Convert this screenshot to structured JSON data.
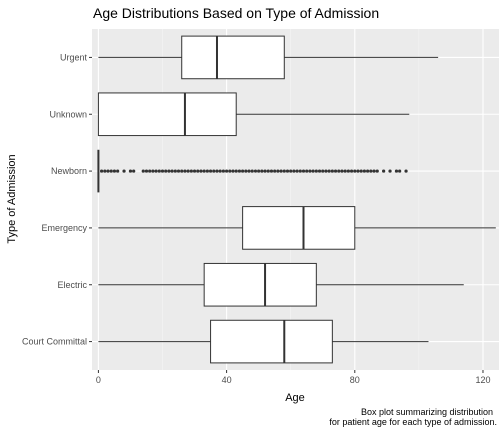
{
  "chart_data": {
    "type": "boxplot",
    "orientation": "horizontal",
    "title": "Age Distributions Based on Type of Admission",
    "xlabel": "Age",
    "ylabel": "Type of Admission",
    "caption_lines": [
      "Box plot summarizing distribution",
      "for patient age for each type of admission."
    ],
    "xlim": [
      -2,
      125
    ],
    "x_ticks": [
      0,
      40,
      80,
      120
    ],
    "x_tick_labels": [
      "0",
      "40",
      "80",
      "120"
    ],
    "grid": true,
    "categories": [
      "Urgent",
      "Unknown",
      "Newborn",
      "Emergency",
      "Electric",
      "Court Committal"
    ],
    "boxes": [
      {
        "category": "Urgent",
        "whisker_low": 0,
        "q1": 26,
        "median": 37,
        "q3": 58,
        "whisker_high": 106
      },
      {
        "category": "Unknown",
        "whisker_low": 0,
        "q1": 0,
        "median": 27,
        "q3": 43,
        "whisker_high": 97
      },
      {
        "category": "Newborn",
        "whisker_low": 0,
        "q1": 0,
        "median": 0,
        "q3": 0,
        "whisker_high": 0,
        "outliers": [
          1,
          2,
          3,
          4,
          5,
          6,
          8,
          10,
          11,
          14,
          15,
          16,
          17,
          18,
          19,
          20,
          21,
          22,
          23,
          24,
          25,
          26,
          27,
          28,
          29,
          30,
          31,
          32,
          33,
          34,
          35,
          36,
          37,
          38,
          39,
          40,
          41,
          42,
          43,
          44,
          45,
          46,
          47,
          48,
          49,
          50,
          51,
          52,
          53,
          54,
          55,
          56,
          57,
          58,
          59,
          60,
          61,
          62,
          63,
          64,
          65,
          66,
          67,
          68,
          69,
          70,
          71,
          72,
          73,
          74,
          75,
          76,
          77,
          78,
          79,
          80,
          81,
          82,
          83,
          84,
          85,
          86,
          87,
          89,
          91,
          93,
          94,
          96
        ]
      },
      {
        "category": "Emergency",
        "whisker_low": 0,
        "q1": 45,
        "median": 64,
        "q3": 80,
        "whisker_high": 124
      },
      {
        "category": "Electric",
        "whisker_low": 0,
        "q1": 33,
        "median": 52,
        "q3": 68,
        "whisker_high": 114
      },
      {
        "category": "Court Committal",
        "whisker_low": 0,
        "q1": 35,
        "median": 58,
        "q3": 73,
        "whisker_high": 103
      }
    ]
  }
}
